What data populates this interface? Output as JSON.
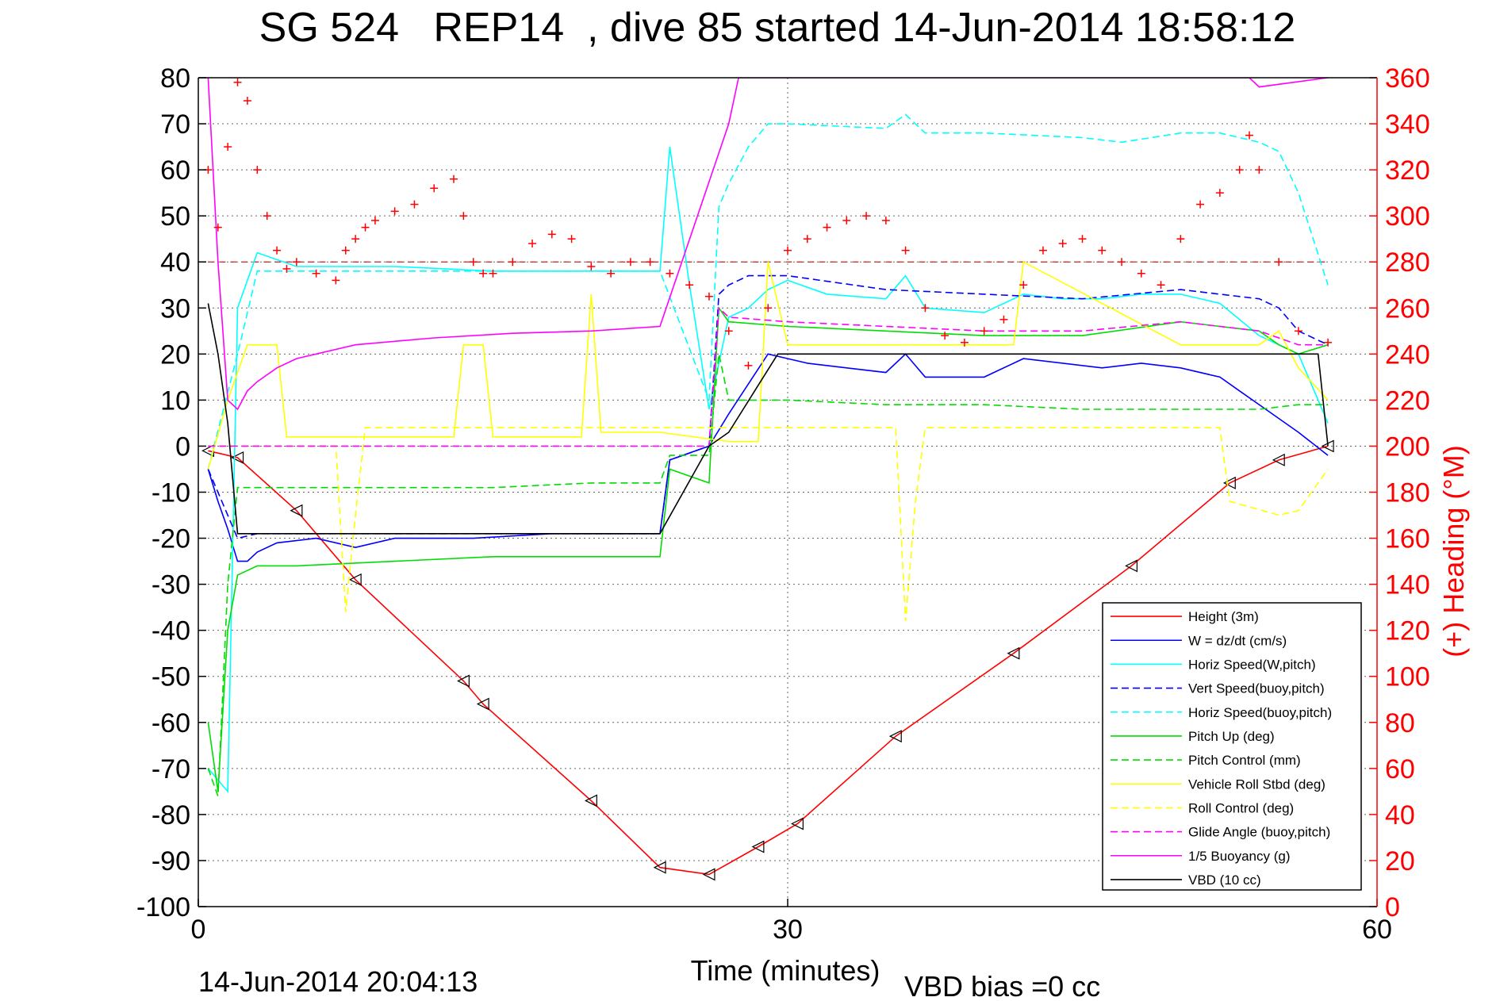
{
  "title": "SG 524   REP14  , dive 85 started 14-Jun-2014 18:58:12",
  "footer": {
    "timestamp": "14-Jun-2014 20:04:13",
    "vbd_bias": "VBD bias =0 cc"
  },
  "chart_data": {
    "type": "line",
    "title": "SG 524   REP14  , dive 85 started 14-Jun-2014 18:58:12",
    "xlabel": "Time (minutes)",
    "ylabel": "",
    "y2label": "(+) Heading (°M)",
    "xlim": [
      0,
      60
    ],
    "ylim": [
      -100,
      80
    ],
    "y2lim": [
      0,
      360
    ],
    "xticks": [
      "0",
      "30",
      "60"
    ],
    "yticks": [
      "80",
      "70",
      "60",
      "50",
      "40",
      "30",
      "20",
      "10",
      "0",
      "-10",
      "-20",
      "-30",
      "-40",
      "-50",
      "-60",
      "-70",
      "-80",
      "-90",
      "-100"
    ],
    "y2ticks": [
      "360",
      "340",
      "320",
      "300",
      "280",
      "260",
      "240",
      "220",
      "200",
      "180",
      "160",
      "140",
      "120",
      "100",
      "80",
      "60",
      "40",
      "20",
      "0"
    ],
    "grid": true,
    "legend_position": "lower-right",
    "colors": {
      "red": "#ff0000",
      "blue": "#0000ff",
      "cyan": "#00ffff",
      "green": "#00dd00",
      "yellow": "#ffff00",
      "magenta": "#ff00ff",
      "black": "#000000"
    },
    "series": [
      {
        "name": "Height (3m)",
        "color": "#ff0000",
        "style": "solid",
        "x": [
          0.5,
          2,
          5,
          8,
          13.5,
          14.5,
          20,
          23.5,
          26,
          28.5,
          30.5,
          35.5,
          41.5,
          47.5,
          52.5,
          55,
          57.5
        ],
        "y": [
          -1,
          -2.5,
          -14,
          -29,
          -51,
          -56,
          -77,
          -91.5,
          -93,
          -87,
          -82,
          -63,
          -45,
          -26,
          -8,
          -3,
          0
        ]
      },
      {
        "name": "W = dz/dt (cm/s)",
        "color": "#0000ff",
        "style": "solid",
        "x": [
          0.5,
          1,
          1.5,
          2,
          2.5,
          3,
          4,
          6,
          8,
          10,
          14,
          18,
          22,
          23.5,
          24,
          26,
          27,
          29,
          30,
          31,
          33,
          35,
          36,
          37,
          40,
          42,
          46,
          48,
          50,
          52,
          53,
          55,
          56,
          57.5
        ],
        "y": [
          -5,
          -12,
          -18,
          -25,
          -25,
          -23,
          -21,
          -20,
          -22,
          -20,
          -20,
          -19,
          -19,
          -19,
          -3,
          0,
          7,
          20,
          19,
          18,
          17,
          16,
          20,
          15,
          15,
          19,
          17,
          18,
          17,
          15,
          12,
          6,
          3,
          -2
        ]
      },
      {
        "name": "Horiz Speed(W,pitch)",
        "color": "#00ffff",
        "style": "solid",
        "x": [
          0.5,
          1.5,
          2,
          3,
          5,
          10,
          15,
          20,
          23.5,
          24,
          25,
          26,
          27,
          28,
          29,
          30,
          32,
          35,
          36,
          37,
          40,
          42,
          44,
          46,
          48,
          50,
          52,
          54,
          55,
          56,
          57.5
        ],
        "y": [
          -70,
          -75,
          30,
          42,
          39,
          39,
          38,
          38,
          38,
          65,
          35,
          8,
          28,
          30,
          34,
          36,
          33,
          32,
          37,
          30,
          29,
          33,
          32,
          32,
          33,
          33,
          31,
          24,
          22,
          20,
          5
        ]
      },
      {
        "name": "Vert Speed(buoy,pitch)",
        "color": "#0000ff",
        "style": "dashed",
        "x": [
          0.5,
          2,
          3,
          23.5,
          24,
          26,
          26.5,
          27,
          28,
          30,
          35,
          40,
          45,
          50,
          52,
          54,
          55,
          56,
          57.5
        ],
        "y": [
          -5,
          -20,
          -19,
          -19,
          -3,
          0,
          33,
          35,
          37,
          37,
          34,
          33,
          32,
          34,
          33,
          32,
          30,
          25,
          22
        ]
      },
      {
        "name": "Horiz Speed(buoy,pitch)",
        "color": "#00ffff",
        "style": "dashed",
        "x": [
          0.5,
          2,
          3,
          23.5,
          26,
          26.5,
          27,
          28,
          29,
          30,
          35,
          36,
          37,
          40,
          45,
          47,
          50,
          52,
          54,
          55,
          56,
          57.5
        ],
        "y": [
          -5,
          20,
          38,
          38,
          10,
          52,
          57,
          65,
          70,
          70,
          69,
          72,
          68,
          68,
          67,
          66,
          68,
          68,
          66,
          64,
          55,
          35
        ]
      },
      {
        "name": "Pitch Up (deg)",
        "color": "#00dd00",
        "style": "solid",
        "x": [
          0.5,
          1,
          1.5,
          2,
          3,
          5,
          10,
          15,
          20,
          23.5,
          24,
          26,
          26.5,
          27,
          30,
          35,
          40,
          45,
          50,
          54,
          55,
          56,
          57.5
        ],
        "y": [
          -60,
          -75,
          -40,
          -28,
          -26,
          -26,
          -25,
          -24,
          -24,
          -24,
          -5,
          -8,
          30,
          27,
          26,
          25,
          24,
          24,
          27,
          25,
          22,
          20,
          22
        ]
      },
      {
        "name": "Pitch Control (mm)",
        "color": "#00dd00",
        "style": "dashed",
        "x": [
          0.5,
          1,
          1.5,
          2,
          3,
          13,
          15,
          20,
          23.5,
          24,
          26,
          26.5,
          27,
          30,
          35,
          40,
          45,
          50,
          54,
          56,
          57.5
        ],
        "y": [
          -70,
          -76,
          -30,
          -9,
          -9,
          -9,
          -9,
          -8,
          -8,
          -2,
          -2,
          20,
          10,
          10,
          9,
          9,
          8,
          8,
          8,
          9,
          9
        ]
      },
      {
        "name": "Vehicle Roll Stbd (deg)",
        "color": "#ffff00",
        "style": "solid",
        "x": [
          0.5,
          1.5,
          2.5,
          4,
          4.5,
          10,
          13,
          13.5,
          14.5,
          15,
          19.5,
          20,
          20.5,
          23.5,
          27,
          28.5,
          29,
          30,
          35,
          40,
          41.5,
          42,
          50,
          52.5,
          54,
          55,
          56,
          57.5
        ],
        "y": [
          -5,
          10,
          22,
          22,
          2,
          2,
          2,
          22,
          22,
          2,
          2,
          33,
          3,
          3,
          1,
          1,
          40,
          22,
          22,
          22,
          22,
          40,
          22,
          22,
          22,
          25,
          17,
          10
        ]
      },
      {
        "name": "Roll Control (deg)",
        "color": "#ffff00",
        "style": "dashed",
        "x": [
          0.5,
          7,
          7.5,
          8,
          8.5,
          35.5,
          36,
          36.5,
          37,
          52,
          52.5,
          55,
          56,
          57.5
        ],
        "y": [
          0,
          0,
          -36,
          -15,
          4,
          4,
          -38,
          -12,
          4,
          4,
          -12,
          -15,
          -14,
          -5
        ]
      },
      {
        "name": "Glide Angle (buoy,pitch)",
        "color": "#ff00ff",
        "style": "dashed",
        "x": [
          0.5,
          26,
          26.5,
          27,
          30,
          35,
          40,
          45,
          50,
          54,
          56,
          57.5
        ],
        "y": [
          0,
          0,
          30,
          28,
          27,
          26,
          25,
          25,
          27,
          25,
          22,
          22
        ]
      },
      {
        "name": "1/5 Buoyancy (g)",
        "color": "#ff00ff",
        "style": "solid",
        "x": [
          0.5,
          1,
          1.5,
          2,
          2.5,
          3,
          4,
          5,
          8,
          12,
          16,
          20,
          23.5,
          27,
          27.5,
          53.5,
          54,
          57.5
        ],
        "y": [
          80,
          40,
          10,
          8,
          12,
          14,
          17,
          19,
          22,
          23.5,
          24.5,
          25,
          26,
          70,
          80,
          80,
          78,
          80
        ]
      },
      {
        "name": "VBD (10 cc)",
        "color": "#000000",
        "style": "solid",
        "x": [
          0.5,
          1,
          1.5,
          2,
          23.5,
          26,
          27,
          29.5,
          57,
          57.5
        ],
        "y": [
          31,
          20,
          5,
          -19,
          -19,
          0,
          3,
          20,
          20,
          0
        ]
      },
      {
        "name": "Heading",
        "color": "#ff0000",
        "style": "markers",
        "axis": "right",
        "x": [
          0.5,
          1,
          1.5,
          2,
          2.5,
          3,
          3.5,
          4,
          4.5,
          5,
          6,
          7,
          7.5,
          8,
          8.5,
          9,
          10,
          11,
          12,
          13,
          13.5,
          14,
          14.5,
          15,
          16,
          17,
          18,
          19,
          20,
          21,
          22,
          23,
          24,
          25,
          26,
          27,
          28,
          29,
          30,
          31,
          32,
          33,
          34,
          35,
          36,
          37,
          38,
          39,
          40,
          41,
          42,
          43,
          44,
          45,
          46,
          47,
          48,
          49,
          50,
          51,
          52,
          53,
          53.5,
          54,
          55,
          56,
          57.5
        ],
        "y": [
          320,
          295,
          330,
          358,
          350,
          320,
          300,
          285,
          277,
          280,
          275,
          272,
          285,
          290,
          295,
          298,
          302,
          305,
          312,
          316,
          300,
          280,
          275,
          275,
          280,
          288,
          292,
          290,
          278,
          275,
          280,
          280,
          275,
          270,
          265,
          250,
          235,
          260,
          285,
          290,
          295,
          298,
          300,
          298,
          285,
          260,
          248,
          245,
          250,
          255,
          270,
          285,
          288,
          290,
          285,
          280,
          275,
          270,
          290,
          305,
          310,
          320,
          335,
          320,
          280,
          250,
          245
        ]
      }
    ]
  }
}
